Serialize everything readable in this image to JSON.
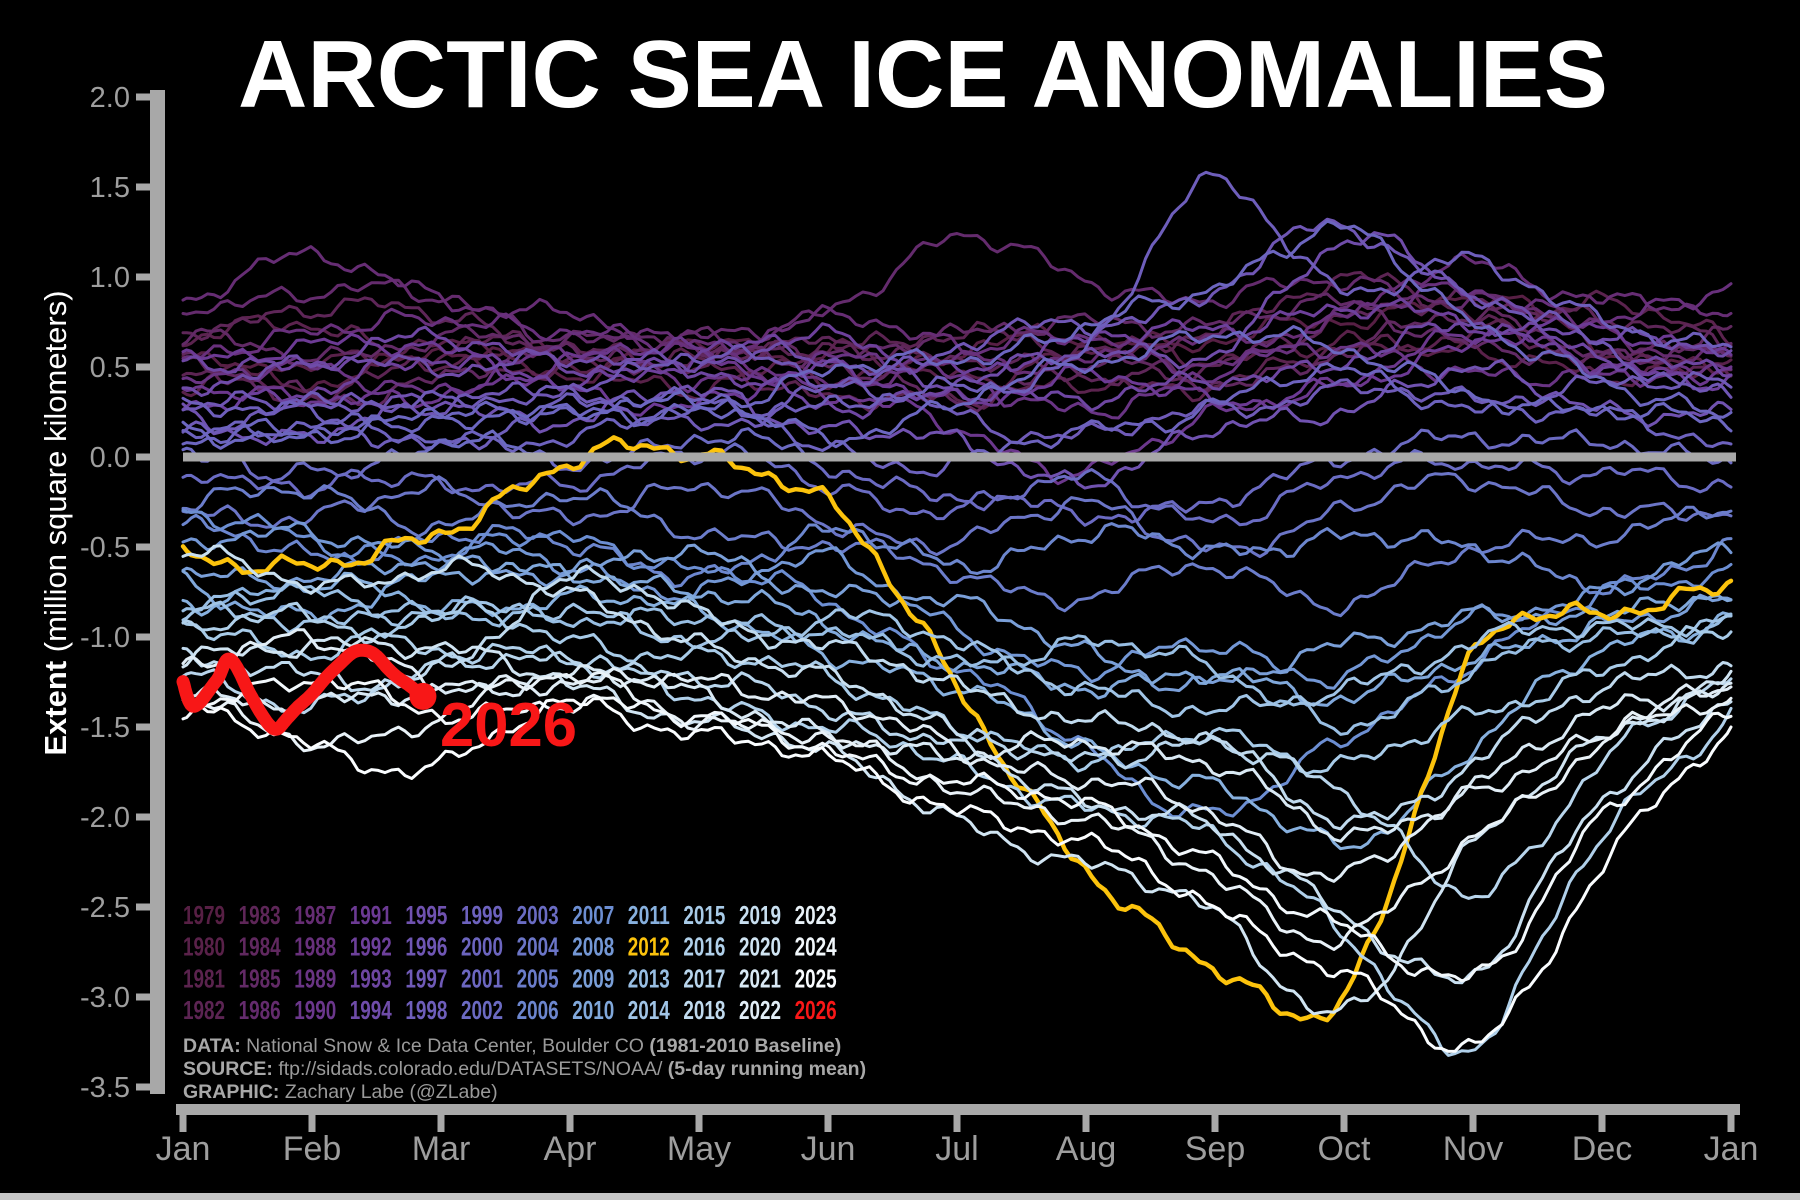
{
  "title": "ARCTIC SEA ICE ANOMALIES",
  "y_axis": {
    "label_bold": "Extent",
    "label_rest": " (million square kilometers)",
    "tick_labels": [
      "2.0",
      "1.5",
      "1.0",
      "0.5",
      "0.0",
      "-0.5",
      "-1.0",
      "-1.5",
      "-2.0",
      "-2.5",
      "-3.0",
      "-3.5"
    ],
    "tick_values": [
      2.0,
      1.5,
      1.0,
      0.5,
      0.0,
      -0.5,
      -1.0,
      -1.5,
      -2.0,
      -2.5,
      -3.0,
      -3.5
    ]
  },
  "x_axis": {
    "tick_labels": [
      "Jan",
      "Feb",
      "Mar",
      "Apr",
      "May",
      "Jun",
      "Jul",
      "Aug",
      "Sep",
      "Oct",
      "Nov",
      "Dec",
      "Jan"
    ]
  },
  "legend": {
    "rows": 4,
    "cols": 12,
    "years": [
      "1979",
      "1980",
      "1981",
      "1982",
      "1983",
      "1984",
      "1985",
      "1986",
      "1987",
      "1988",
      "1989",
      "1990",
      "1991",
      "1992",
      "1993",
      "1994",
      "1995",
      "1996",
      "1997",
      "1998",
      "1999",
      "2000",
      "2001",
      "2002",
      "2003",
      "2004",
      "2005",
      "2006",
      "2007",
      "2008",
      "2009",
      "2010",
      "2011",
      "2012",
      "2013",
      "2014",
      "2015",
      "2016",
      "2017",
      "2018",
      "2019",
      "2020",
      "2021",
      "2022",
      "2023",
      "2024",
      "2025",
      "2026"
    ]
  },
  "annotation": {
    "label": "2026",
    "month": 2.0,
    "value": -1.6
  },
  "credits": {
    "data": {
      "label": "DATA:",
      "text": " National Snow & Ice Data Center, Boulder CO ",
      "suffix": "(1981-2010 Baseline)"
    },
    "source": {
      "label": "SOURCE:",
      "text": " ftp://sidads.colorado.edu/DATASETS/NOAA/ ",
      "suffix": "(5-day running mean)"
    },
    "graphic": {
      "label": "GRAPHIC:",
      "text": " Zachary Labe (@ZLabe)",
      "suffix": ""
    }
  },
  "colors": {
    "background": "#000000",
    "axis": "#a8a8a8",
    "zero_line": "#a8a8a8",
    "tick_label": "#9e9e9e",
    "title_text": "#ffffff",
    "credit_text": "#9a9a9a",
    "special_2012": "#fcc30c",
    "special_2026": "#f81717",
    "footer_strip": "#c6c6c6"
  },
  "colormap_stops": [
    {
      "year": 1979,
      "color": "#571f44"
    },
    {
      "year": 1983,
      "color": "#5e2658"
    },
    {
      "year": 1987,
      "color": "#662d74"
    },
    {
      "year": 1991,
      "color": "#6c3a94"
    },
    {
      "year": 1995,
      "color": "#7052b0"
    },
    {
      "year": 1999,
      "color": "#6d62be"
    },
    {
      "year": 2003,
      "color": "#6a6cc3"
    },
    {
      "year": 2007,
      "color": "#6c8ed2"
    },
    {
      "year": 2011,
      "color": "#87b0de"
    },
    {
      "year": 2015,
      "color": "#a8cbe8"
    },
    {
      "year": 2019,
      "color": "#c8dff0"
    },
    {
      "year": 2023,
      "color": "#e9f2f8"
    },
    {
      "year": 2025,
      "color": "#fafdff"
    }
  ],
  "chart_data": {
    "type": "line",
    "title": "ARCTIC SEA ICE ANOMALIES",
    "ylabel": "Extent (million square kilometers)",
    "units": "million square kilometers anomaly, 1981-2010 baseline",
    "ylim": [
      -3.5,
      2.0
    ],
    "zero_baseline": true,
    "x_tick_labels": [
      "Jan",
      "Feb",
      "Mar",
      "Apr",
      "May",
      "Jun",
      "Jul",
      "Aug",
      "Sep",
      "Oct",
      "Nov",
      "Dec",
      "Jan"
    ],
    "highlight_series": "2012",
    "series": [
      {
        "name": "1979",
        "values": [
          0.55,
          0.45,
          0.55,
          0.5,
          0.62,
          0.48,
          0.55,
          0.7,
          0.62,
          0.78,
          0.88,
          0.62,
          0.52
        ]
      },
      {
        "name": "1980",
        "values": [
          0.35,
          0.55,
          0.62,
          0.5,
          0.42,
          0.55,
          0.45,
          0.6,
          0.5,
          0.68,
          0.55,
          0.45,
          0.58
        ]
      },
      {
        "name": "1981",
        "values": [
          0.62,
          0.72,
          0.55,
          0.45,
          0.55,
          0.35,
          0.28,
          0.45,
          0.38,
          0.58,
          0.72,
          0.82,
          0.65
        ]
      },
      {
        "name": "1982",
        "values": [
          0.45,
          0.38,
          0.55,
          0.65,
          0.52,
          0.6,
          0.72,
          0.55,
          0.75,
          0.95,
          0.8,
          0.55,
          0.45
        ]
      },
      {
        "name": "1983",
        "values": [
          0.7,
          0.85,
          0.75,
          0.6,
          0.5,
          0.65,
          0.55,
          0.42,
          0.55,
          0.72,
          0.9,
          0.75,
          0.6
        ]
      },
      {
        "name": "1984",
        "values": [
          0.5,
          0.35,
          0.45,
          0.55,
          0.65,
          0.48,
          0.35,
          0.52,
          0.4,
          0.62,
          0.75,
          0.6,
          0.7
        ]
      },
      {
        "name": "1985",
        "values": [
          0.65,
          0.55,
          0.7,
          0.6,
          0.7,
          0.55,
          0.65,
          0.8,
          0.7,
          0.85,
          0.65,
          0.52,
          0.62
        ]
      },
      {
        "name": "1986",
        "values": [
          0.8,
          0.95,
          0.85,
          0.7,
          0.62,
          0.85,
          1.18,
          1.02,
          0.85,
          1.0,
          0.85,
          0.7,
          0.55
        ]
      },
      {
        "name": "1987",
        "values": [
          0.9,
          1.08,
          0.92,
          0.75,
          0.65,
          0.75,
          0.62,
          0.52,
          0.65,
          0.8,
          1.05,
          0.9,
          0.75
        ]
      },
      {
        "name": "1988",
        "values": [
          0.55,
          0.65,
          0.8,
          0.7,
          0.55,
          0.45,
          0.55,
          0.65,
          0.55,
          0.75,
          0.92,
          0.8,
          0.9
        ]
      },
      {
        "name": "1989",
        "values": [
          0.35,
          0.5,
          0.4,
          0.55,
          0.45,
          0.55,
          0.4,
          0.3,
          0.45,
          0.6,
          0.5,
          0.4,
          0.5
        ]
      },
      {
        "name": "1990",
        "values": [
          0.45,
          0.28,
          0.38,
          0.5,
          0.6,
          0.35,
          0.15,
          -0.05,
          0.2,
          0.45,
          0.65,
          0.55,
          0.45
        ]
      },
      {
        "name": "1991",
        "values": [
          0.55,
          0.65,
          0.55,
          0.4,
          0.3,
          0.45,
          0.35,
          0.45,
          0.28,
          0.45,
          0.6,
          0.7,
          0.6
        ]
      },
      {
        "name": "1992",
        "values": [
          0.3,
          0.4,
          0.5,
          0.45,
          0.55,
          0.65,
          0.52,
          0.62,
          0.72,
          0.85,
          0.7,
          0.55,
          0.4
        ]
      },
      {
        "name": "1993",
        "values": [
          0.6,
          0.5,
          0.65,
          0.55,
          0.45,
          0.28,
          0.4,
          0.28,
          0.45,
          0.55,
          0.7,
          0.6,
          0.5
        ]
      },
      {
        "name": "1994",
        "values": [
          0.4,
          0.55,
          0.45,
          0.6,
          0.5,
          0.55,
          0.45,
          0.55,
          0.62,
          1.18,
          0.9,
          0.7,
          0.55
        ]
      },
      {
        "name": "1995",
        "values": [
          0.25,
          0.12,
          0.3,
          0.22,
          0.35,
          0.18,
          0.05,
          -0.1,
          0.12,
          0.3,
          0.45,
          0.3,
          0.2
        ]
      },
      {
        "name": "1996",
        "values": [
          0.2,
          0.35,
          0.25,
          0.42,
          0.55,
          0.45,
          0.6,
          0.75,
          0.92,
          1.28,
          0.9,
          0.6,
          0.35
        ]
      },
      {
        "name": "1997",
        "values": [
          0.15,
          0.25,
          0.35,
          0.3,
          0.2,
          0.35,
          0.25,
          0.12,
          0.25,
          0.4,
          0.28,
          0.45,
          0.35
        ]
      },
      {
        "name": "1998",
        "values": [
          0.3,
          0.2,
          0.1,
          0.25,
          0.35,
          0.25,
          0.4,
          0.6,
          1.52,
          0.95,
          1.05,
          0.8,
          0.55
        ]
      },
      {
        "name": "1999",
        "values": [
          0.1,
          0.22,
          0.05,
          0.15,
          0.25,
          0.08,
          -0.05,
          0.15,
          0.3,
          0.45,
          0.3,
          0.2,
          0.1
        ]
      },
      {
        "name": "2000",
        "values": [
          0.05,
          0.15,
          0.25,
          0.2,
          0.3,
          0.45,
          0.55,
          0.75,
          0.9,
          1.32,
          0.7,
          0.45,
          0.25
        ]
      },
      {
        "name": "2001",
        "values": [
          0.2,
          0.1,
          0.2,
          0.3,
          0.25,
          0.15,
          0.3,
          0.5,
          0.72,
          0.55,
          0.38,
          0.25,
          0.15
        ]
      },
      {
        "name": "2002",
        "values": [
          0.0,
          -0.12,
          0.05,
          0.0,
          0.1,
          -0.05,
          -0.2,
          -0.35,
          -0.2,
          -0.05,
          0.15,
          0.05,
          -0.05
        ]
      },
      {
        "name": "2003",
        "values": [
          -0.15,
          -0.05,
          -0.2,
          -0.1,
          0.0,
          -0.15,
          -0.28,
          -0.15,
          -0.32,
          -0.15,
          0.0,
          -0.1,
          -0.2
        ]
      },
      {
        "name": "2004",
        "values": [
          -0.25,
          -0.35,
          -0.2,
          -0.3,
          -0.2,
          -0.35,
          -0.45,
          -0.3,
          -0.48,
          -0.3,
          -0.15,
          -0.25,
          -0.35
        ]
      },
      {
        "name": "2005",
        "values": [
          -0.3,
          -0.2,
          -0.35,
          -0.25,
          -0.38,
          -0.52,
          -0.62,
          -0.78,
          -0.62,
          -0.78,
          -0.55,
          -0.4,
          -0.3
        ]
      },
      {
        "name": "2006",
        "values": [
          -0.4,
          -0.55,
          -0.42,
          -0.52,
          -0.62,
          -0.45,
          -0.58,
          -0.42,
          -0.55,
          -0.4,
          -0.55,
          -0.68,
          -0.5
        ]
      },
      {
        "name": "2007",
        "values": [
          -0.35,
          -0.45,
          -0.55,
          -0.45,
          -0.62,
          -0.82,
          -1.15,
          -1.65,
          -1.95,
          -1.6,
          -1.1,
          -0.8,
          -0.6
        ]
      },
      {
        "name": "2008",
        "values": [
          -0.55,
          -0.4,
          -0.52,
          -0.62,
          -0.72,
          -0.6,
          -0.92,
          -1.22,
          -1.02,
          -1.22,
          -0.92,
          -0.72,
          -0.55
        ]
      },
      {
        "name": "2009",
        "values": [
          -0.6,
          -0.72,
          -0.55,
          -0.65,
          -0.55,
          -0.72,
          -0.85,
          -1.05,
          -1.28,
          -1.05,
          -0.85,
          -0.95,
          -0.75
        ]
      },
      {
        "name": "2010",
        "values": [
          -0.7,
          -0.85,
          -0.7,
          -0.6,
          -0.78,
          -0.92,
          -1.12,
          -1.32,
          -1.15,
          -1.38,
          -1.1,
          -0.9,
          -0.8
        ]
      },
      {
        "name": "2011",
        "values": [
          -0.8,
          -0.7,
          -0.85,
          -0.75,
          -0.9,
          -1.05,
          -1.32,
          -1.58,
          -1.85,
          -2.15,
          -1.6,
          -1.1,
          -0.85
        ]
      },
      {
        "name": "2012",
        "values": [
          -0.5,
          -0.65,
          -0.38,
          -0.05,
          0.02,
          -0.25,
          -1.3,
          -2.25,
          -2.88,
          -2.95,
          -1.15,
          -0.85,
          -0.7
        ]
      },
      {
        "name": "2013",
        "values": [
          -0.9,
          -0.75,
          -0.85,
          -0.95,
          -0.85,
          -1.0,
          -1.15,
          -1.0,
          -1.22,
          -1.45,
          -1.2,
          -1.0,
          -0.9
        ]
      },
      {
        "name": "2014",
        "values": [
          -0.85,
          -0.95,
          -0.8,
          -0.9,
          -1.0,
          -0.9,
          -1.05,
          -1.25,
          -1.45,
          -1.25,
          -1.05,
          -0.95,
          -0.85
        ]
      },
      {
        "name": "2015",
        "values": [
          -0.95,
          -1.05,
          -0.9,
          -1.0,
          -1.1,
          -1.25,
          -1.45,
          -1.72,
          -1.5,
          -1.72,
          -1.45,
          -1.15,
          -1.0
        ]
      },
      {
        "name": "2016",
        "values": [
          -1.0,
          -0.9,
          -1.05,
          -1.15,
          -1.3,
          -1.52,
          -1.72,
          -1.92,
          -2.15,
          -2.6,
          -3.3,
          -2.1,
          -1.4
        ]
      },
      {
        "name": "2017",
        "values": [
          -1.2,
          -1.35,
          -1.2,
          -1.1,
          -1.25,
          -1.4,
          -1.55,
          -1.72,
          -1.55,
          -1.9,
          -2.4,
          -1.7,
          -1.25
        ]
      },
      {
        "name": "2018",
        "values": [
          -1.1,
          -1.25,
          -1.15,
          -0.72,
          -0.85,
          -1.05,
          -1.3,
          -1.42,
          -1.62,
          -2.0,
          -1.7,
          -1.3,
          -1.1
        ]
      },
      {
        "name": "2019",
        "values": [
          -0.55,
          -0.7,
          -0.6,
          -0.8,
          -1.0,
          -1.25,
          -1.55,
          -1.9,
          -2.1,
          -2.5,
          -2.9,
          -1.9,
          -1.3
        ]
      },
      {
        "name": "2020",
        "values": [
          -1.15,
          -1.0,
          -1.1,
          -1.25,
          -1.45,
          -1.68,
          -1.98,
          -2.28,
          -2.55,
          -3.05,
          -2.2,
          -1.55,
          -1.2
        ]
      },
      {
        "name": "2021",
        "values": [
          -1.25,
          -1.4,
          -1.3,
          -1.2,
          -1.35,
          -1.5,
          -1.7,
          -1.55,
          -1.72,
          -2.1,
          -1.8,
          -1.45,
          -1.25
        ]
      },
      {
        "name": "2022",
        "values": [
          -1.15,
          -1.05,
          -1.2,
          -1.3,
          -1.2,
          -1.4,
          -1.6,
          -1.8,
          -2.0,
          -2.3,
          -1.9,
          -1.5,
          -1.3
        ]
      },
      {
        "name": "2023",
        "values": [
          -1.3,
          -1.62,
          -1.4,
          -1.25,
          -1.42,
          -1.6,
          -1.8,
          -2.05,
          -2.3,
          -2.7,
          -2.1,
          -1.6,
          -1.35
        ]
      },
      {
        "name": "2024",
        "values": [
          -1.35,
          -1.25,
          -1.45,
          -1.32,
          -1.48,
          -1.62,
          -1.78,
          -1.98,
          -2.22,
          -2.62,
          -2.92,
          -1.95,
          -1.45
        ]
      },
      {
        "name": "2025",
        "values": [
          -1.42,
          -1.58,
          -1.72,
          -1.38,
          -1.52,
          -1.72,
          -1.92,
          -2.18,
          -2.48,
          -2.88,
          -3.28,
          -2.25,
          -1.55
        ]
      }
    ],
    "partial_series": {
      "name": "2026",
      "x_months": [
        0,
        0.08,
        0.26,
        0.36,
        0.52,
        0.69,
        0.81,
        1.01,
        1.22,
        1.43,
        1.59,
        1.74,
        1.86
      ],
      "values": [
        -1.24,
        -1.36,
        -1.23,
        -1.12,
        -1.31,
        -1.5,
        -1.45,
        -1.3,
        -1.16,
        -1.09,
        -1.18,
        -1.27,
        -1.33
      ]
    }
  }
}
